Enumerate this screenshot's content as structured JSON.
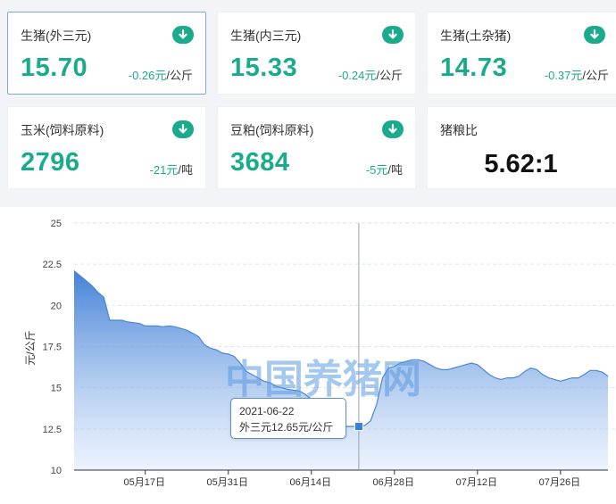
{
  "cards": [
    {
      "title": "生猪(外三元)",
      "value": "15.70",
      "delta": "-0.26元",
      "unit": "/公斤",
      "icon": "arrow-down-icon"
    },
    {
      "title": "生猪(内三元)",
      "value": "15.33",
      "delta": "-0.24元",
      "unit": "/公斤",
      "icon": "arrow-down-icon"
    },
    {
      "title": "生猪(土杂猪)",
      "value": "14.73",
      "delta": "-0.37元",
      "unit": "/公斤",
      "icon": "arrow-down-icon"
    },
    {
      "title": "玉米(饲料原料)",
      "value": "2796",
      "delta": "-21元",
      "unit": "/吨",
      "icon": "arrow-down-icon"
    },
    {
      "title": "豆粕(饲料原料)",
      "value": "3684",
      "delta": "-5元",
      "unit": "/吨",
      "icon": "arrow-down-icon"
    }
  ],
  "ratio_card": {
    "title": "猪粮比",
    "value": "5.62:1"
  },
  "colors": {
    "accent": "#1aaa8c",
    "line": "#4a86d6",
    "fill_top": "#3a7bd5",
    "fill_bottom": "#dce9fb",
    "watermark": "#5b9be0"
  },
  "watermark": "中国养猪网",
  "tooltip": {
    "date": "2021-06-22",
    "text": "外三元12.65元/公斤"
  },
  "chart_data": {
    "type": "area",
    "ylabel": "元/公斤",
    "ylim": [
      10,
      25
    ],
    "yticks": [
      10,
      12.5,
      15,
      17.5,
      20,
      22.5,
      25
    ],
    "xlim": [
      "2021-05-05",
      "2021-08-03"
    ],
    "xticks": [
      {
        "label": "05月17日",
        "date": "2021-05-17"
      },
      {
        "label": "05月31日",
        "date": "2021-05-31"
      },
      {
        "label": "06月14日",
        "date": "2021-06-14"
      },
      {
        "label": "06月28日",
        "date": "2021-06-28"
      },
      {
        "label": "07月12日",
        "date": "2021-07-12"
      },
      {
        "label": "07月26日",
        "date": "2021-07-26"
      }
    ],
    "grid": true,
    "highlight": {
      "date": "2021-06-22",
      "value": 12.65
    },
    "series": [
      {
        "name": "外三元",
        "points": [
          [
            "2021-05-05",
            22.1
          ],
          [
            "2021-05-06",
            21.8
          ],
          [
            "2021-05-07",
            21.5
          ],
          [
            "2021-05-08",
            21.2
          ],
          [
            "2021-05-09",
            20.8
          ],
          [
            "2021-05-10",
            20.5
          ],
          [
            "2021-05-11",
            19.1
          ],
          [
            "2021-05-12",
            19.1
          ],
          [
            "2021-05-13",
            19.1
          ],
          [
            "2021-05-14",
            19.0
          ],
          [
            "2021-05-15",
            18.95
          ],
          [
            "2021-05-16",
            18.9
          ],
          [
            "2021-05-17",
            18.75
          ],
          [
            "2021-05-18",
            18.75
          ],
          [
            "2021-05-19",
            18.75
          ],
          [
            "2021-05-20",
            18.7
          ],
          [
            "2021-05-21",
            18.75
          ],
          [
            "2021-05-22",
            18.7
          ],
          [
            "2021-05-23",
            18.6
          ],
          [
            "2021-05-24",
            18.5
          ],
          [
            "2021-05-25",
            18.3
          ],
          [
            "2021-05-26",
            18.1
          ],
          [
            "2021-05-27",
            17.6
          ],
          [
            "2021-05-28",
            17.4
          ],
          [
            "2021-05-29",
            17.3
          ],
          [
            "2021-05-30",
            17.1
          ],
          [
            "2021-05-31",
            17.05
          ],
          [
            "2021-06-01",
            16.9
          ],
          [
            "2021-06-02",
            16.5
          ],
          [
            "2021-06-03",
            16.0
          ],
          [
            "2021-06-04",
            15.8
          ],
          [
            "2021-06-05",
            15.6
          ],
          [
            "2021-06-06",
            15.4
          ],
          [
            "2021-06-07",
            15.3
          ],
          [
            "2021-06-08",
            15.1
          ],
          [
            "2021-06-09",
            15.0
          ],
          [
            "2021-06-10",
            14.9
          ],
          [
            "2021-06-11",
            14.85
          ],
          [
            "2021-06-12",
            14.8
          ],
          [
            "2021-06-13",
            14.6
          ],
          [
            "2021-06-14",
            14.3
          ],
          [
            "2021-06-15",
            14.0
          ],
          [
            "2021-06-16",
            13.6
          ],
          [
            "2021-06-17",
            13.2
          ],
          [
            "2021-06-18",
            12.9
          ],
          [
            "2021-06-19",
            12.7
          ],
          [
            "2021-06-20",
            12.65
          ],
          [
            "2021-06-21",
            12.65
          ],
          [
            "2021-06-22",
            12.65
          ],
          [
            "2021-06-23",
            12.7
          ],
          [
            "2021-06-24",
            13.0
          ],
          [
            "2021-06-25",
            14.0
          ],
          [
            "2021-06-26",
            15.6
          ],
          [
            "2021-06-27",
            16.2
          ],
          [
            "2021-06-28",
            16.3
          ],
          [
            "2021-06-29",
            16.5
          ],
          [
            "2021-06-30",
            16.6
          ],
          [
            "2021-07-01",
            16.7
          ],
          [
            "2021-07-02",
            16.7
          ],
          [
            "2021-07-03",
            16.6
          ],
          [
            "2021-07-04",
            16.4
          ],
          [
            "2021-07-05",
            16.2
          ],
          [
            "2021-07-06",
            16.1
          ],
          [
            "2021-07-07",
            16.1
          ],
          [
            "2021-07-08",
            16.2
          ],
          [
            "2021-07-09",
            16.3
          ],
          [
            "2021-07-10",
            16.4
          ],
          [
            "2021-07-11",
            16.5
          ],
          [
            "2021-07-12",
            16.4
          ],
          [
            "2021-07-13",
            16.1
          ],
          [
            "2021-07-14",
            15.8
          ],
          [
            "2021-07-15",
            15.6
          ],
          [
            "2021-07-16",
            15.5
          ],
          [
            "2021-07-17",
            15.6
          ],
          [
            "2021-07-18",
            15.6
          ],
          [
            "2021-07-19",
            15.7
          ],
          [
            "2021-07-20",
            16.0
          ],
          [
            "2021-07-21",
            16.2
          ],
          [
            "2021-07-22",
            16.1
          ],
          [
            "2021-07-23",
            15.8
          ],
          [
            "2021-07-24",
            15.6
          ],
          [
            "2021-07-25",
            15.5
          ],
          [
            "2021-07-26",
            15.4
          ],
          [
            "2021-07-27",
            15.5
          ],
          [
            "2021-07-28",
            15.6
          ],
          [
            "2021-07-29",
            15.6
          ],
          [
            "2021-07-30",
            15.8
          ],
          [
            "2021-07-31",
            16.05
          ],
          [
            "2021-08-01",
            16.05
          ],
          [
            "2021-08-02",
            15.95
          ],
          [
            "2021-08-03",
            15.7
          ]
        ]
      }
    ]
  }
}
